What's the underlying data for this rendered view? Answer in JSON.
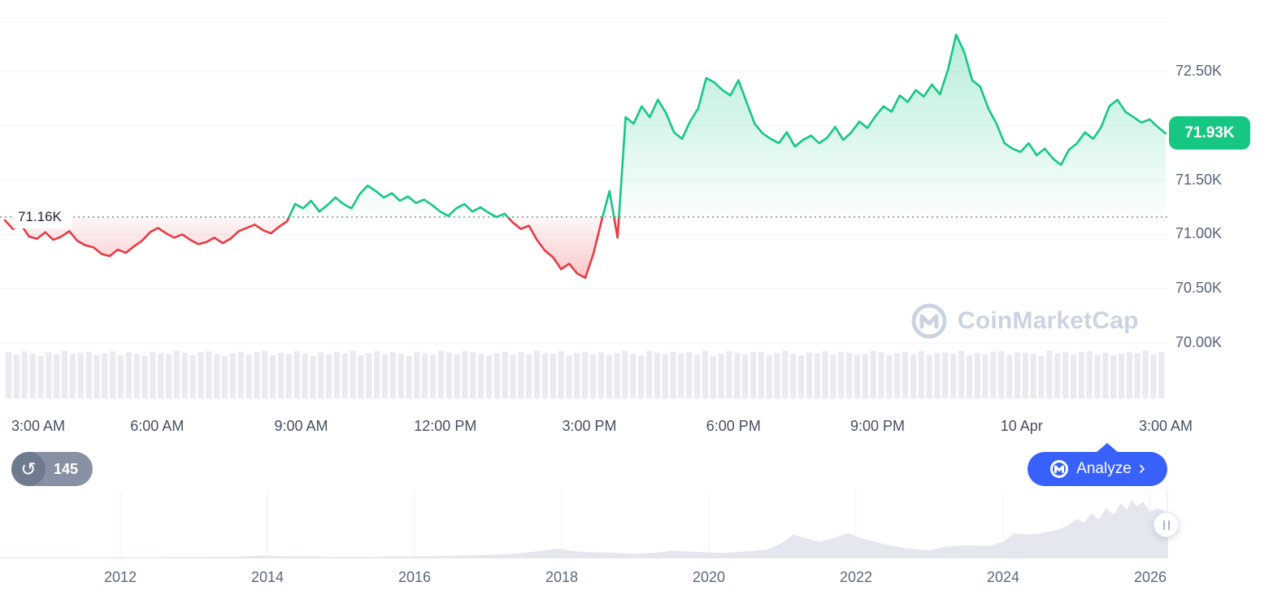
{
  "colors": {
    "positive": "#16c784",
    "negative": "#ea3943",
    "analyze_blue": "#3861fb",
    "badge_green": "#16c784",
    "pill_gray": "#8791a3",
    "watermark_gray": "#cbd3e1",
    "volume_gray": "#e9ebf1",
    "navigator_fill": "#e4e7ee",
    "grid": "#eff2f5"
  },
  "chart": {
    "baseline_label": "71.16K",
    "current_price_label": "71.93K",
    "y_axis_labels": [
      {
        "label": "72.50K",
        "value": 72.5
      },
      {
        "label": "71.50K",
        "value": 71.5
      },
      {
        "label": "71.00K",
        "value": 71.0
      },
      {
        "label": "70.50K",
        "value": 70.5
      },
      {
        "label": "70.00K",
        "value": 70.0
      }
    ],
    "x_axis_labels": [
      "3:00 AM",
      "6:00 AM",
      "9:00 AM",
      "12:00 PM",
      "3:00 PM",
      "6:00 PM",
      "9:00 PM",
      "10 Apr",
      "3:00 AM"
    ],
    "watermark_text": "CoinMarketCap"
  },
  "controls": {
    "history_count": "145",
    "analyze_label": "Analyze",
    "analyze_chevron": "›"
  },
  "navigator": {
    "x_axis_labels": [
      {
        "label": "2012",
        "year": 2012
      },
      {
        "label": "2014",
        "year": 2014
      },
      {
        "label": "2016",
        "year": 2016
      },
      {
        "label": "2018",
        "year": 2018
      },
      {
        "label": "2020",
        "year": 2020
      },
      {
        "label": "2022",
        "year": 2022
      },
      {
        "label": "2024",
        "year": 2024
      },
      {
        "label": "2026",
        "year": 2026
      }
    ]
  },
  "chart_data": [
    {
      "id": "intraday_price",
      "type": "line",
      "title": "24h price vs baseline 71.16K",
      "x_start": "3:00 AM",
      "x_end": "3:00 AM",
      "x_interval_minutes": 10,
      "x_tick_labels": [
        "3:00 AM",
        "6:00 AM",
        "9:00 AM",
        "12:00 PM",
        "3:00 PM",
        "6:00 PM",
        "9:00 PM",
        "10 Apr",
        "3:00 AM"
      ],
      "unit": "thousand USD",
      "baseline": 71.16,
      "last_price": 71.93,
      "high": 72.84,
      "low": 70.6,
      "ylim": [
        69.95,
        73.0
      ],
      "y_grid": [
        73.0,
        72.5,
        72.0,
        71.5,
        71.0,
        70.5,
        70.0
      ],
      "y_tick_labels_visible": [
        "72.50K",
        "71.50K",
        "71.00K",
        "70.50K",
        "70.00K"
      ],
      "above_baseline_color": "#16c784",
      "below_baseline_color": "#ea3943",
      "values": [
        71.13,
        71.05,
        71.09,
        70.98,
        70.96,
        71.02,
        70.95,
        70.98,
        71.03,
        70.94,
        70.9,
        70.88,
        70.82,
        70.8,
        70.86,
        70.83,
        70.89,
        70.94,
        71.02,
        71.06,
        71.01,
        70.97,
        71.0,
        70.95,
        70.91,
        70.93,
        70.97,
        70.92,
        70.96,
        71.03,
        71.06,
        71.09,
        71.04,
        71.01,
        71.07,
        71.12,
        71.28,
        71.24,
        71.31,
        71.21,
        71.27,
        71.34,
        71.28,
        71.24,
        71.37,
        71.45,
        71.4,
        71.34,
        71.38,
        71.31,
        71.35,
        71.29,
        71.32,
        71.27,
        71.21,
        71.17,
        71.24,
        71.28,
        71.21,
        71.25,
        71.2,
        71.16,
        71.19,
        71.11,
        71.05,
        71.08,
        70.95,
        70.85,
        70.79,
        70.68,
        70.73,
        70.64,
        70.6,
        70.82,
        71.12,
        71.4,
        70.97,
        72.08,
        72.02,
        72.18,
        72.08,
        72.24,
        72.12,
        71.94,
        71.88,
        72.04,
        72.16,
        72.44,
        72.4,
        72.33,
        72.28,
        72.42,
        72.22,
        72.02,
        71.93,
        71.88,
        71.84,
        71.94,
        71.81,
        71.87,
        71.91,
        71.84,
        71.89,
        71.99,
        71.87,
        71.94,
        72.04,
        71.98,
        72.09,
        72.18,
        72.13,
        72.28,
        72.22,
        72.33,
        72.27,
        72.38,
        72.29,
        72.52,
        72.84,
        72.68,
        72.42,
        72.36,
        72.16,
        72.02,
        71.84,
        71.79,
        71.76,
        71.84,
        71.73,
        71.79,
        71.7,
        71.64,
        71.78,
        71.84,
        71.94,
        71.88,
        71.99,
        72.18,
        72.24,
        72.13,
        72.08,
        72.03,
        72.06,
        71.99,
        71.93
      ],
      "volume_relative": [
        0.9,
        0.85,
        0.92,
        0.88,
        0.83,
        0.9,
        0.86,
        0.93,
        0.87,
        0.89,
        0.91,
        0.85,
        0.88,
        0.92,
        0.84,
        0.9,
        0.87,
        0.83,
        0.91,
        0.88,
        0.86,
        0.93,
        0.89,
        0.84,
        0.9,
        0.92,
        0.87,
        0.83,
        0.88,
        0.91,
        0.85,
        0.9,
        0.93,
        0.84,
        0.89,
        0.87,
        0.92,
        0.88,
        0.83,
        0.9,
        0.86,
        0.91,
        0.88,
        0.93,
        0.84,
        0.89,
        0.92,
        0.86,
        0.9,
        0.87,
        0.83,
        0.91,
        0.88,
        0.85,
        0.93,
        0.89,
        0.86,
        0.92,
        0.9,
        0.87,
        0.84,
        0.88,
        0.91,
        0.85,
        0.9,
        0.86,
        0.93,
        0.88,
        0.87,
        0.92,
        0.83,
        0.89,
        0.91,
        0.86,
        0.9,
        0.85,
        0.88,
        0.93,
        0.87,
        0.84,
        0.92,
        0.89,
        0.86,
        0.91,
        0.88,
        0.9,
        0.85,
        0.93,
        0.83,
        0.87,
        0.92,
        0.88,
        0.86,
        0.9,
        0.91,
        0.85,
        0.89,
        0.93,
        0.87,
        0.84,
        0.9,
        0.88,
        0.92,
        0.86,
        0.91,
        0.89,
        0.85,
        0.87,
        0.93,
        0.9,
        0.84,
        0.88,
        0.91,
        0.86,
        0.92,
        0.85,
        0.89,
        0.9,
        0.87,
        0.93,
        0.84,
        0.88,
        0.86,
        0.91,
        0.92,
        0.85,
        0.9,
        0.89,
        0.87,
        0.83,
        0.93,
        0.88,
        0.91,
        0.86,
        0.9,
        0.92,
        0.85,
        0.89,
        0.84,
        0.87,
        0.91,
        0.88,
        0.93,
        0.86,
        0.9
      ]
    },
    {
      "id": "all_time_navigator",
      "type": "area",
      "title": "Range navigator (all-time history)",
      "x_tick_labels": [
        "2012",
        "2014",
        "2016",
        "2018",
        "2020",
        "2022",
        "2024",
        "2026"
      ],
      "ylim": [
        0,
        75
      ],
      "fill_color": "#e4e7ee",
      "points": [
        [
          2010.36,
          0.2
        ],
        [
          2011,
          0.25
        ],
        [
          2011.5,
          0.3
        ],
        [
          2012,
          0.35
        ],
        [
          2012.5,
          0.4
        ],
        [
          2013,
          0.8
        ],
        [
          2013.5,
          0.9
        ],
        [
          2013.9,
          2.5
        ],
        [
          2014.2,
          1.8
        ],
        [
          2014.5,
          1.4
        ],
        [
          2015,
          1.0
        ],
        [
          2015.5,
          1.1
        ],
        [
          2016,
          1.6
        ],
        [
          2016.5,
          2.2
        ],
        [
          2017,
          3.2
        ],
        [
          2017.4,
          5
        ],
        [
          2017.7,
          8
        ],
        [
          2017.95,
          11
        ],
        [
          2018.15,
          8
        ],
        [
          2018.4,
          6.5
        ],
        [
          2018.7,
          6
        ],
        [
          2019,
          4.5
        ],
        [
          2019.3,
          6
        ],
        [
          2019.5,
          8.5
        ],
        [
          2019.8,
          7
        ],
        [
          2020,
          6.5
        ],
        [
          2020.2,
          5.5
        ],
        [
          2020.5,
          7.5
        ],
        [
          2020.8,
          10
        ],
        [
          2021,
          18
        ],
        [
          2021.15,
          28
        ],
        [
          2021.3,
          24
        ],
        [
          2021.5,
          19
        ],
        [
          2021.7,
          24
        ],
        [
          2021.9,
          30
        ],
        [
          2022.05,
          24
        ],
        [
          2022.4,
          16
        ],
        [
          2022.7,
          11
        ],
        [
          2023,
          9
        ],
        [
          2023.2,
          13
        ],
        [
          2023.5,
          15
        ],
        [
          2023.8,
          14
        ],
        [
          2024,
          19
        ],
        [
          2024.15,
          30
        ],
        [
          2024.35,
          28
        ],
        [
          2024.55,
          30
        ],
        [
          2024.75,
          34
        ],
        [
          2024.9,
          40
        ],
        [
          2025,
          47
        ],
        [
          2025.1,
          42
        ],
        [
          2025.2,
          54
        ],
        [
          2025.3,
          46
        ],
        [
          2025.4,
          60
        ],
        [
          2025.5,
          52
        ],
        [
          2025.6,
          66
        ],
        [
          2025.68,
          58
        ],
        [
          2025.75,
          71
        ],
        [
          2025.82,
          62
        ],
        [
          2025.9,
          68
        ],
        [
          2026,
          56
        ],
        [
          2026.1,
          60
        ],
        [
          2026.24,
          54
        ]
      ]
    }
  ]
}
